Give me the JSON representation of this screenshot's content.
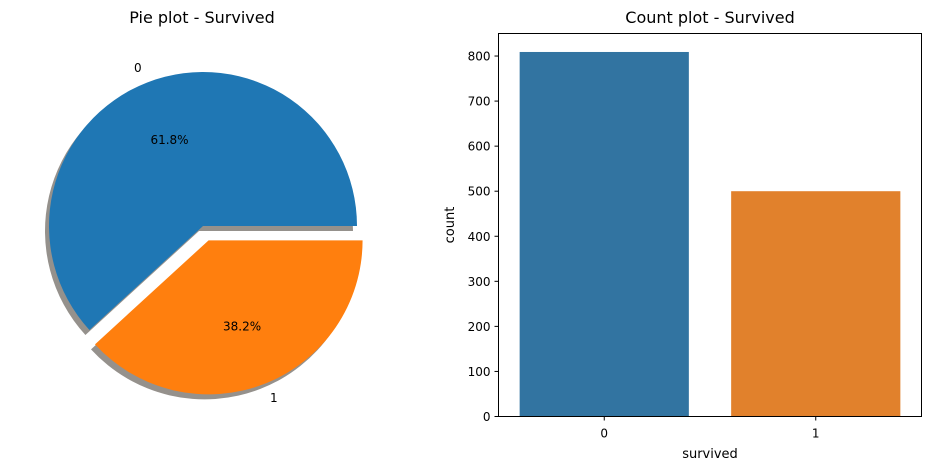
{
  "chart_data": [
    {
      "type": "pie",
      "title": "Pie plot - Survived",
      "labels": [
        "0",
        "1"
      ],
      "values": [
        61.8,
        38.2
      ],
      "value_labels": [
        "61.8%",
        "38.2%"
      ],
      "colors": [
        "#1f77b4",
        "#ff7f0e"
      ],
      "explode": [
        0,
        0.1
      ],
      "shadow": true
    },
    {
      "type": "bar",
      "title": "Count plot - Survived",
      "xlabel": "survived",
      "ylabel": "count",
      "categories": [
        "0",
        "1"
      ],
      "values": [
        809,
        500
      ],
      "colors": [
        "#3274a1",
        "#e1812c"
      ],
      "ylim": [
        0,
        850
      ],
      "yticks": [
        0,
        100,
        200,
        300,
        400,
        500,
        600,
        700,
        800
      ],
      "grid": false
    }
  ]
}
